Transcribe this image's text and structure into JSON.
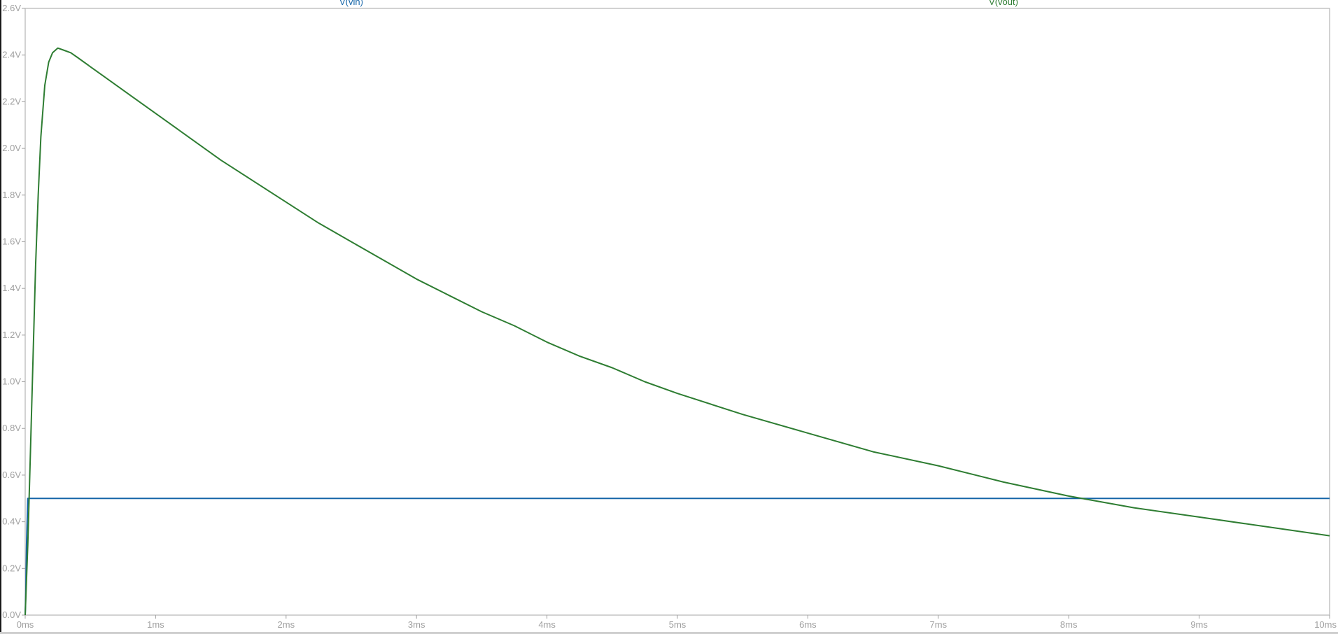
{
  "chart_data": {
    "type": "line",
    "title": "",
    "xlabel": "",
    "ylabel": "",
    "xlim": [
      0,
      10
    ],
    "ylim": [
      0,
      2.6
    ],
    "x_unit": "ms",
    "y_unit": "V",
    "grid": false,
    "x_ticks": [
      {
        "value": 0,
        "label": "0ms"
      },
      {
        "value": 1,
        "label": "1ms"
      },
      {
        "value": 2,
        "label": "2ms"
      },
      {
        "value": 3,
        "label": "3ms"
      },
      {
        "value": 4,
        "label": "4ms"
      },
      {
        "value": 5,
        "label": "5ms"
      },
      {
        "value": 6,
        "label": "6ms"
      },
      {
        "value": 7,
        "label": "7ms"
      },
      {
        "value": 8,
        "label": "8ms"
      },
      {
        "value": 9,
        "label": "9ms"
      },
      {
        "value": 10,
        "label": "10ms"
      }
    ],
    "y_ticks": [
      {
        "value": 0.0,
        "label": "0.0V"
      },
      {
        "value": 0.2,
        "label": "0.2V"
      },
      {
        "value": 0.4,
        "label": "0.4V"
      },
      {
        "value": 0.6,
        "label": "0.6V"
      },
      {
        "value": 0.8,
        "label": "0.8V"
      },
      {
        "value": 1.0,
        "label": "1.0V"
      },
      {
        "value": 1.2,
        "label": "1.2V"
      },
      {
        "value": 1.4,
        "label": "1.4V"
      },
      {
        "value": 1.6,
        "label": "1.6V"
      },
      {
        "value": 1.8,
        "label": "1.8V"
      },
      {
        "value": 2.0,
        "label": "2.0V"
      },
      {
        "value": 2.2,
        "label": "2.2V"
      },
      {
        "value": 2.4,
        "label": "2.4V"
      },
      {
        "value": 2.6,
        "label": "2.6V"
      }
    ],
    "series": [
      {
        "name": "V(vin)",
        "color": "#1565a8",
        "label_x": 2.5,
        "points": [
          [
            0,
            0
          ],
          [
            0.005,
            0.1
          ],
          [
            0.01,
            0.3
          ],
          [
            0.02,
            0.5
          ],
          [
            10,
            0.5
          ]
        ]
      },
      {
        "name": "V(vout)",
        "color": "#2e7d32",
        "label_x": 7.5,
        "points": [
          [
            0,
            0
          ],
          [
            0.02,
            0.3
          ],
          [
            0.04,
            0.7
          ],
          [
            0.06,
            1.1
          ],
          [
            0.08,
            1.5
          ],
          [
            0.1,
            1.8
          ],
          [
            0.12,
            2.05
          ],
          [
            0.15,
            2.27
          ],
          [
            0.18,
            2.37
          ],
          [
            0.21,
            2.41
          ],
          [
            0.25,
            2.43
          ],
          [
            0.3,
            2.42
          ],
          [
            0.35,
            2.41
          ],
          [
            0.4,
            2.39
          ],
          [
            0.5,
            2.35
          ],
          [
            0.6,
            2.31
          ],
          [
            0.8,
            2.23
          ],
          [
            1.0,
            2.15
          ],
          [
            1.25,
            2.05
          ],
          [
            1.5,
            1.95
          ],
          [
            1.75,
            1.86
          ],
          [
            2.0,
            1.77
          ],
          [
            2.25,
            1.68
          ],
          [
            2.5,
            1.6
          ],
          [
            2.75,
            1.52
          ],
          [
            3.0,
            1.44
          ],
          [
            3.25,
            1.37
          ],
          [
            3.5,
            1.3
          ],
          [
            3.75,
            1.24
          ],
          [
            4.0,
            1.17
          ],
          [
            4.25,
            1.11
          ],
          [
            4.5,
            1.06
          ],
          [
            4.75,
            1.0
          ],
          [
            5.0,
            0.95
          ],
          [
            5.5,
            0.86
          ],
          [
            6.0,
            0.78
          ],
          [
            6.5,
            0.7
          ],
          [
            7.0,
            0.64
          ],
          [
            7.5,
            0.57
          ],
          [
            8.0,
            0.51
          ],
          [
            8.5,
            0.46
          ],
          [
            9.0,
            0.42
          ],
          [
            9.5,
            0.38
          ],
          [
            10.0,
            0.34
          ]
        ]
      }
    ]
  }
}
